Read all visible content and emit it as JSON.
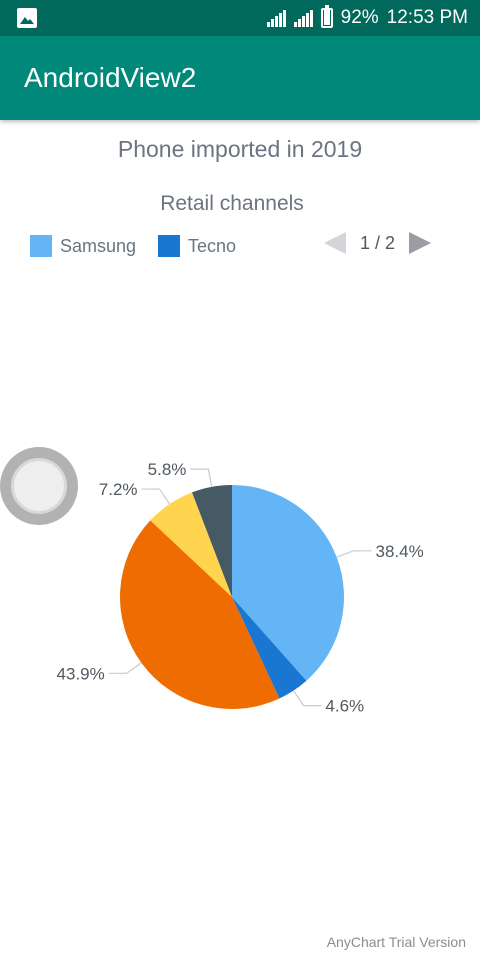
{
  "status_bar": {
    "battery": "92%",
    "time": "12:53 PM",
    "battery_level": 0.92,
    "left_icon": "image-icon",
    "background": "#00695c"
  },
  "app_bar": {
    "title": "AndroidView2",
    "background": "#00897b"
  },
  "legend": {
    "title": "Retail channels",
    "items": [
      {
        "label": "Samsung",
        "color": "#64b5f6"
      },
      {
        "label": "Tecno",
        "color": "#1976d2"
      }
    ],
    "pager": "1 / 2"
  },
  "chart_data": {
    "type": "pie",
    "title": "Phone imported in 2019",
    "slices": [
      {
        "value": 38.4,
        "label": "38.4%",
        "color": "#64b5f6"
      },
      {
        "value": 4.6,
        "label": "4.6%",
        "color": "#1976d2"
      },
      {
        "value": 43.9,
        "label": "43.9%",
        "color": "#ef6c00"
      },
      {
        "value": 7.2,
        "label": "7.2%",
        "color": "#ffd54f"
      },
      {
        "value": 5.8,
        "label": "5.8%",
        "color": "#455a64"
      }
    ]
  },
  "watermark": "AnyChart Trial Version"
}
